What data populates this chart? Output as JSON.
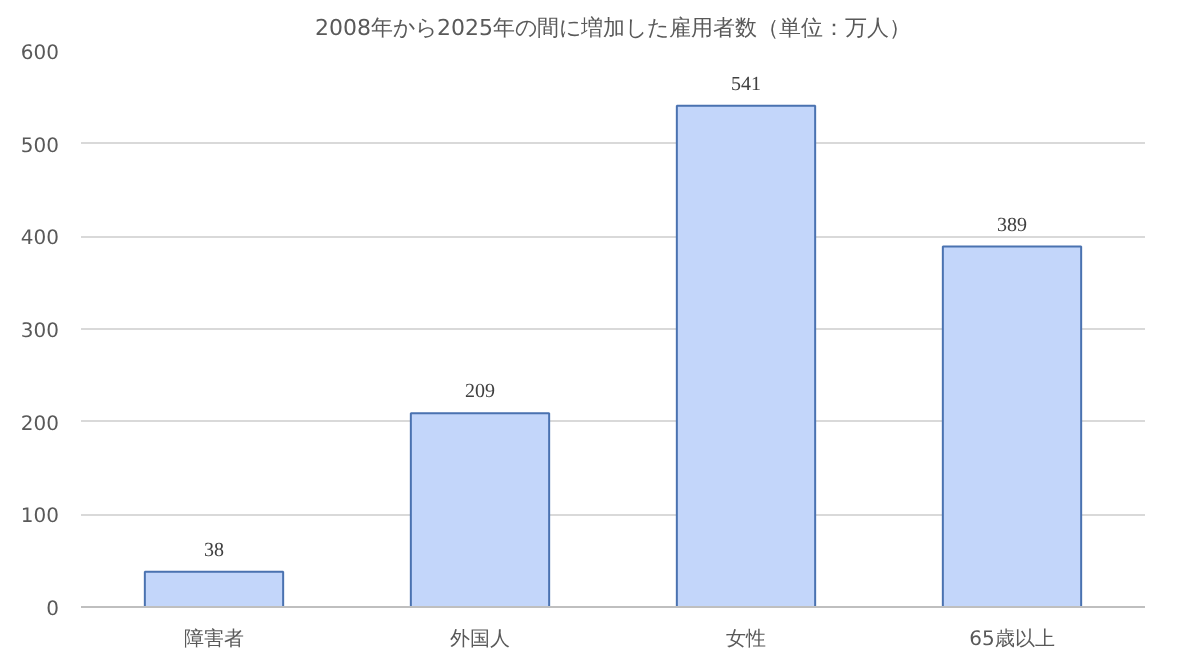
{
  "chart_data": {
    "type": "bar",
    "title": "2008年から2025年の間に増加した雇用者数（単位：万人）",
    "categories": [
      "障害者",
      "外国人",
      "女性",
      "65歳以上"
    ],
    "values": [
      38,
      209,
      541,
      389
    ],
    "color": "#c3d6fa",
    "ylim": [
      0,
      600
    ],
    "yticks": [
      0,
      100,
      200,
      300,
      400,
      500,
      600
    ],
    "grid": "y",
    "data_labels": true
  }
}
